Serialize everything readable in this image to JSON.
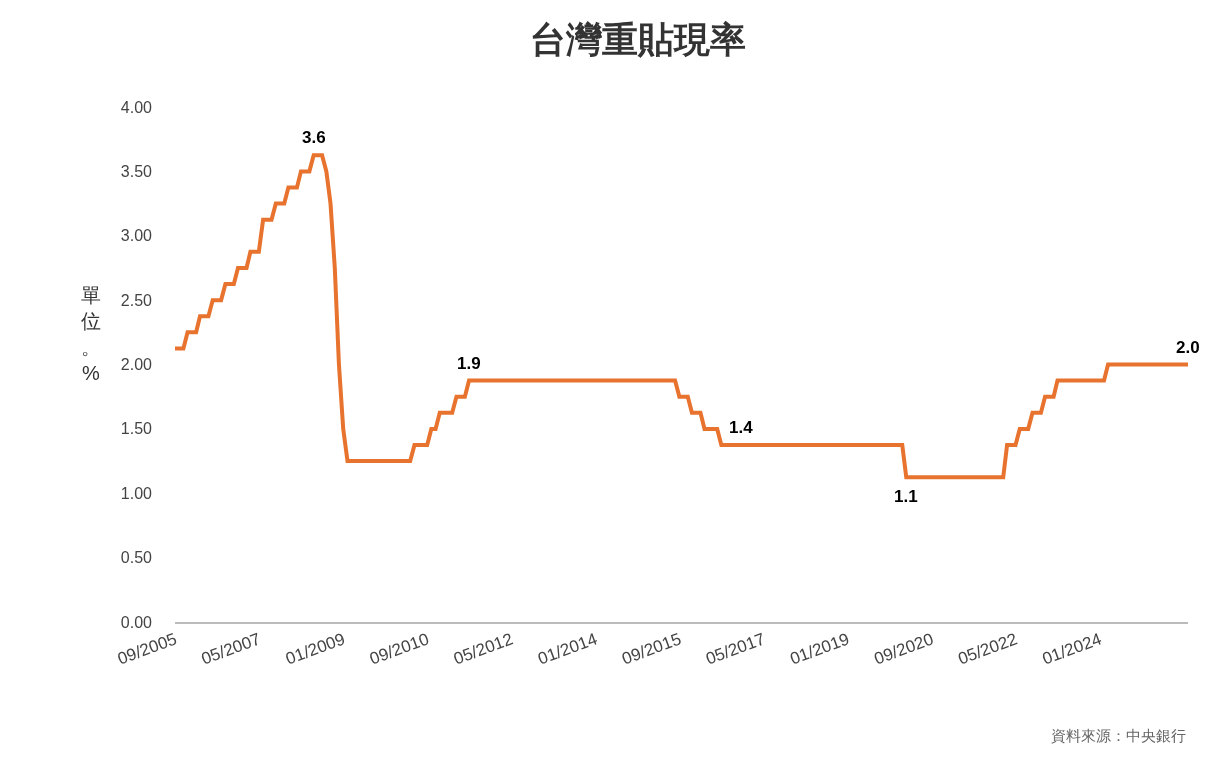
{
  "chart_data": {
    "type": "line",
    "title": "台灣重貼現率",
    "ylabel": "單位。%",
    "x": [
      "2005-09",
      "2005-11",
      "2005-12",
      "2006-02",
      "2006-03",
      "2006-05",
      "2006-06",
      "2006-08",
      "2006-09",
      "2006-11",
      "2006-12",
      "2007-02",
      "2007-03",
      "2007-05",
      "2007-06",
      "2007-08",
      "2007-09",
      "2007-11",
      "2007-12",
      "2008-02",
      "2008-03",
      "2008-05",
      "2008-06",
      "2008-08",
      "2008-09",
      "2008-10",
      "2008-11",
      "2008-12",
      "2009-01",
      "2009-02",
      "2010-05",
      "2010-06",
      "2010-09",
      "2010-10",
      "2010-11",
      "2010-12",
      "2011-03",
      "2011-04",
      "2011-06",
      "2011-07",
      "2015-08",
      "2015-09",
      "2015-11",
      "2015-12",
      "2016-02",
      "2016-03",
      "2016-06",
      "2016-07",
      "2020-02",
      "2020-03",
      "2022-02",
      "2022-03",
      "2022-05",
      "2022-06",
      "2022-08",
      "2022-09",
      "2022-11",
      "2022-12",
      "2023-02",
      "2023-03",
      "2024-02",
      "2024-03",
      "2025-10"
    ],
    "series": [
      {
        "color": "#e8732f",
        "values": [
          2.125,
          2.125,
          2.25,
          2.25,
          2.375,
          2.375,
          2.5,
          2.5,
          2.625,
          2.625,
          2.75,
          2.75,
          2.875,
          2.875,
          3.125,
          3.125,
          3.25,
          3.25,
          3.375,
          3.375,
          3.5,
          3.5,
          3.625,
          3.625,
          3.5,
          3.25,
          2.75,
          2.0,
          1.5,
          1.25,
          1.25,
          1.375,
          1.375,
          1.5,
          1.5,
          1.625,
          1.625,
          1.75,
          1.75,
          1.875,
          1.875,
          1.75,
          1.75,
          1.625,
          1.625,
          1.5,
          1.5,
          1.375,
          1.375,
          1.125,
          1.125,
          1.375,
          1.375,
          1.5,
          1.5,
          1.625,
          1.625,
          1.75,
          1.75,
          1.875,
          1.875,
          2.0,
          2.0
        ]
      }
    ],
    "annotations": [
      {
        "text": "3.6",
        "x": "2008-06",
        "y": 3.625
      },
      {
        "text": "1.9",
        "x": "2011-07",
        "y": 1.875
      },
      {
        "text": "1.4",
        "x": "2016-07",
        "y": 1.375
      },
      {
        "text": "1.1",
        "x": "2020-03",
        "y": 1.125
      },
      {
        "text": "2.0",
        "x": "2025-10",
        "y": 2.0
      },
      "資料來源：中央銀行"
    ],
    "xlim": [
      "2005-09",
      "2025-10"
    ],
    "xticks": [
      {
        "value": "2005-09",
        "label": "09/2005"
      },
      {
        "value": "2007-05",
        "label": "05/2007"
      },
      {
        "value": "2009-01",
        "label": "01/2009"
      },
      {
        "value": "2010-09",
        "label": "09/2010"
      },
      {
        "value": "2012-05",
        "label": "05/2012"
      },
      {
        "value": "2014-01",
        "label": "01/2014"
      },
      {
        "value": "2015-09",
        "label": "09/2015"
      },
      {
        "value": "2017-05",
        "label": "05/2017"
      },
      {
        "value": "2019-01",
        "label": "01/2019"
      },
      {
        "value": "2020-09",
        "label": "09/2020"
      },
      {
        "value": "2022-05",
        "label": "05/2022"
      },
      {
        "value": "2024-01",
        "label": "01/2024"
      }
    ],
    "ylim": [
      0,
      4
    ],
    "yticks": [
      {
        "value": 0,
        "label": "0.00"
      },
      {
        "value": 0.5,
        "label": "0.50"
      },
      {
        "value": 1,
        "label": "1.00"
      },
      {
        "value": 1.5,
        "label": "1.50"
      },
      {
        "value": 2,
        "label": "2.00"
      },
      {
        "value": 2.5,
        "label": "2.50"
      },
      {
        "value": 3,
        "label": "3.00"
      },
      {
        "value": 3.5,
        "label": "3.50"
      },
      {
        "value": 4,
        "label": "4.00"
      }
    ],
    "grid": false,
    "marker": "none",
    "line_style": "solid"
  }
}
